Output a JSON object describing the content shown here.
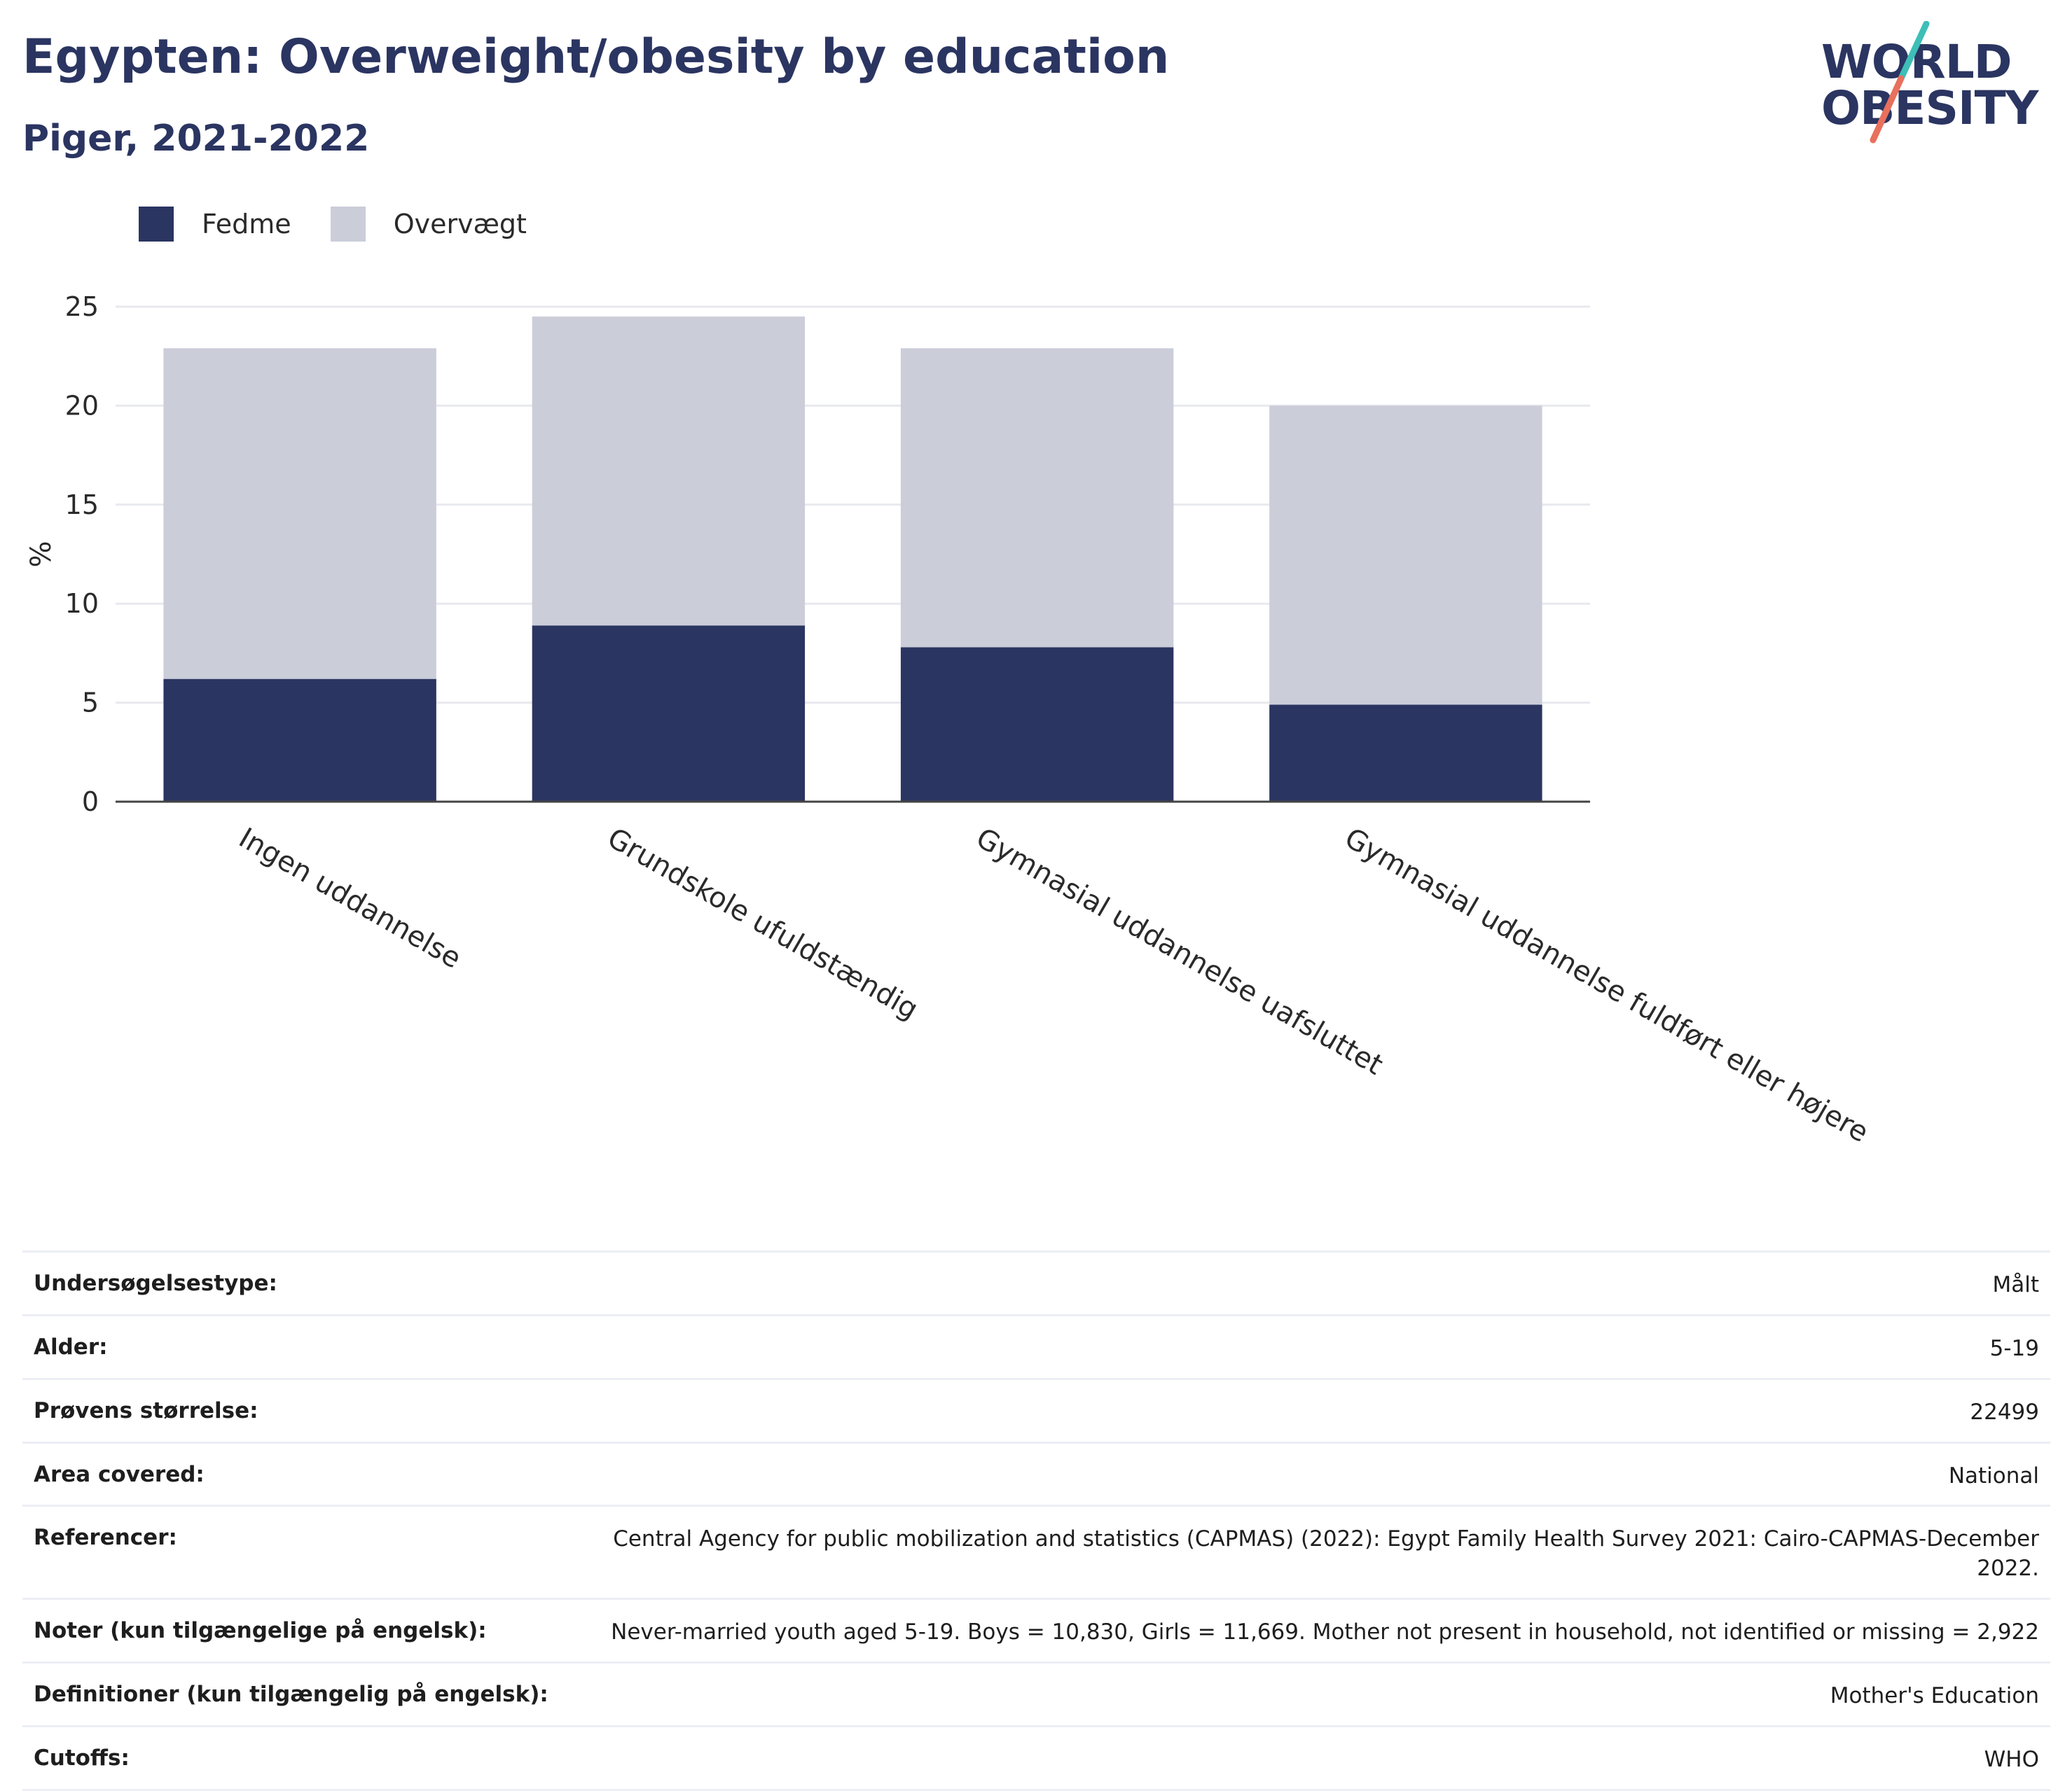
{
  "header": {
    "title": "Egypten: Overweight/obesity by education",
    "subtitle": "Piger, 2021-2022"
  },
  "logo": {
    "line1": "WORLD",
    "line2": "OBESITY",
    "colors": {
      "text": "#2b3561",
      "accent_top": "#3dbfb7",
      "accent_bottom": "#e8705d"
    }
  },
  "legend": [
    {
      "label": "Fedme",
      "color": "#2b3561"
    },
    {
      "label": "Overvægt",
      "color": "#cbcdd9"
    }
  ],
  "chart_data": {
    "type": "bar",
    "stacked": true,
    "categories": [
      "Ingen uddannelse",
      "Grundskole ufuldstændig",
      "Gymnasial uddannelse uafsluttet",
      "Gymnasial uddannelse fuldført eller højere"
    ],
    "series": [
      {
        "name": "Fedme",
        "color": "#2b3561",
        "values": [
          6.2,
          8.9,
          7.8,
          4.9
        ]
      },
      {
        "name": "Overvægt",
        "color": "#cbcdd9",
        "values": [
          16.7,
          15.6,
          15.1,
          15.1
        ]
      }
    ],
    "ylabel": "%",
    "ylim": [
      0,
      25
    ],
    "yticks": [
      "0",
      "5",
      "10",
      "15",
      "20",
      "25"
    ],
    "grid": true,
    "legend_position": "top-left"
  },
  "details": [
    {
      "key": "Undersøgelsestype:",
      "value": "Målt"
    },
    {
      "key": "Alder:",
      "value": "5-19"
    },
    {
      "key": "Prøvens størrelse:",
      "value": "22499"
    },
    {
      "key": "Area covered:",
      "value": "National"
    },
    {
      "key": "Referencer:",
      "value": "Central Agency for public mobilization and statistics (CAPMAS) (2022): Egypt Family Health Survey 2021: Cairo-CAPMAS-December 2022."
    },
    {
      "key": "Noter (kun tilgængelige på engelsk):",
      "value": "Never-married youth aged 5-19. Boys = 10,830, Girls = 11,669. Mother not present in household, not identified or missing = 2,922"
    },
    {
      "key": "Definitioner (kun tilgængelig på engelsk):",
      "value": "Mother's Education"
    },
    {
      "key": "Cutoffs:",
      "value": "WHO"
    }
  ]
}
